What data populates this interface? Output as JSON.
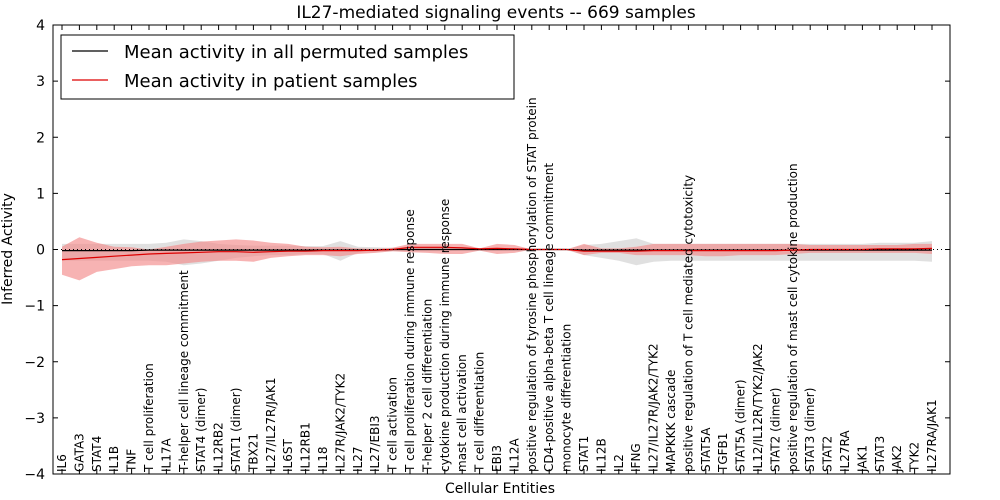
{
  "chart_data": {
    "type": "line",
    "title": "IL27-mediated signaling events -- 669 samples",
    "xlabel": "Cellular Entities",
    "ylabel": "Inferred Activity",
    "ylim": [
      -4,
      4
    ],
    "yticks": [
      -4,
      -3,
      -2,
      -1,
      0,
      1,
      2,
      3,
      4
    ],
    "categories": [
      "IL6",
      "GATA3",
      "STAT4",
      "IL1B",
      "TNF",
      "T cell proliferation",
      "IL17A",
      "T-helper cell lineage commitment",
      "STAT4 (dimer)",
      "IL12RB2",
      "STAT1 (dimer)",
      "TBX21",
      "IL27/IL27R/JAK1",
      "IL6ST",
      "IL12RB1",
      "IL18",
      "IL27R/JAK2/TYK2",
      "IL27",
      "IL27/EBI3",
      "T cell activation",
      "T cell proliferation during immune response",
      "T-helper 2 cell differentiation",
      "cytokine production during immune response",
      "mast cell activation",
      "T cell differentiation",
      "EBI3",
      "IL12A",
      "positive regulation of tyrosine phosphorylation of STAT protein",
      "CD4-positive alpha-beta T cell lineage commitment",
      "monocyte differentiation",
      "STAT1",
      "IL12B",
      "IL2",
      "IFNG",
      "IL27/IL27R/JAK2/TYK2",
      "MAPKKK cascade",
      "positive regulation of T cell mediated cytotoxicity",
      "STAT5A",
      "TGFB1",
      "STAT5A (dimer)",
      "IL12/IL12R/TYK2/JAK2",
      "STAT2 (dimer)",
      "positive regulation of mast cell cytokine production",
      "STAT3 (dimer)",
      "STAT2",
      "IL27RA",
      "JAK1",
      "STAT3",
      "JAK2",
      "TYK2",
      "IL27RA/JAK1"
    ],
    "series": [
      {
        "name": "Mean activity in all permuted samples",
        "color": "#000000",
        "fill": "#bbbbbb",
        "values": [
          -0.02,
          -0.02,
          -0.02,
          -0.02,
          -0.02,
          -0.01,
          -0.01,
          -0.01,
          -0.01,
          -0.01,
          -0.01,
          -0.01,
          -0.01,
          -0.01,
          -0.01,
          -0.01,
          -0.01,
          -0.01,
          -0.01,
          0.0,
          0.0,
          0.0,
          0.0,
          0.0,
          0.0,
          0.0,
          0.0,
          0.0,
          0.0,
          0.0,
          -0.01,
          -0.01,
          -0.01,
          -0.01,
          -0.01,
          -0.01,
          -0.01,
          -0.01,
          -0.01,
          -0.01,
          -0.01,
          -0.01,
          -0.01,
          -0.01,
          -0.01,
          -0.01,
          -0.01,
          -0.01,
          -0.01,
          -0.01,
          -0.01
        ],
        "upper": [
          0.1,
          0.1,
          0.1,
          0.1,
          0.1,
          0.1,
          0.12,
          0.18,
          0.15,
          0.1,
          0.08,
          0.07,
          0.07,
          0.07,
          0.06,
          0.06,
          0.15,
          0.05,
          0.04,
          0.03,
          0.03,
          0.03,
          0.03,
          0.02,
          0.02,
          0.02,
          0.02,
          0.01,
          0.01,
          0.01,
          0.08,
          0.1,
          0.15,
          0.2,
          0.1,
          0.1,
          0.1,
          0.1,
          0.1,
          0.1,
          0.1,
          0.1,
          0.1,
          0.1,
          0.1,
          0.1,
          0.1,
          0.12,
          0.12,
          0.12,
          0.15
        ],
        "lower": [
          -0.2,
          -0.2,
          -0.2,
          -0.2,
          -0.2,
          -0.2,
          -0.22,
          -0.28,
          -0.25,
          -0.2,
          -0.15,
          -0.12,
          -0.1,
          -0.1,
          -0.08,
          -0.08,
          -0.2,
          -0.06,
          -0.05,
          -0.03,
          -0.03,
          -0.03,
          -0.03,
          -0.02,
          -0.02,
          -0.02,
          -0.02,
          -0.01,
          -0.01,
          -0.01,
          -0.1,
          -0.15,
          -0.2,
          -0.28,
          -0.22,
          -0.2,
          -0.2,
          -0.2,
          -0.2,
          -0.2,
          -0.2,
          -0.2,
          -0.2,
          -0.2,
          -0.2,
          -0.2,
          -0.2,
          -0.2,
          -0.2,
          -0.2,
          -0.22
        ]
      },
      {
        "name": "Mean activity in patient samples",
        "color": "#dd0000",
        "fill": "#f28b8b",
        "values": [
          -0.18,
          -0.16,
          -0.14,
          -0.12,
          -0.1,
          -0.08,
          -0.07,
          -0.06,
          -0.05,
          -0.04,
          -0.04,
          -0.05,
          -0.04,
          -0.03,
          -0.03,
          -0.02,
          -0.02,
          -0.02,
          -0.01,
          0.0,
          0.04,
          0.04,
          0.04,
          0.03,
          0.01,
          0.02,
          0.01,
          0.0,
          0.0,
          0.0,
          -0.03,
          -0.03,
          -0.03,
          -0.03,
          -0.02,
          -0.02,
          -0.02,
          -0.02,
          -0.02,
          -0.02,
          -0.02,
          -0.02,
          -0.01,
          0.0,
          0.0,
          0.0,
          0.0,
          0.01,
          0.01,
          0.01,
          0.02
        ],
        "upper": [
          0.05,
          0.22,
          0.12,
          0.05,
          0.04,
          0.0,
          0.05,
          0.1,
          0.14,
          0.16,
          0.18,
          0.16,
          0.12,
          0.1,
          0.05,
          0.04,
          0.05,
          0.02,
          0.01,
          0.03,
          0.1,
          0.1,
          0.1,
          0.1,
          0.02,
          0.1,
          0.08,
          0.0,
          0.0,
          0.0,
          0.1,
          0.02,
          0.02,
          0.05,
          0.1,
          0.1,
          0.1,
          0.1,
          0.1,
          0.1,
          0.1,
          0.1,
          0.1,
          0.08,
          0.08,
          0.08,
          0.08,
          0.08,
          0.08,
          0.1,
          0.1
        ],
        "lower": [
          -0.45,
          -0.55,
          -0.4,
          -0.35,
          -0.3,
          -0.28,
          -0.28,
          -0.25,
          -0.22,
          -0.2,
          -0.2,
          -0.22,
          -0.15,
          -0.12,
          -0.1,
          -0.1,
          -0.12,
          -0.08,
          -0.06,
          -0.03,
          -0.05,
          -0.06,
          -0.08,
          -0.08,
          -0.02,
          -0.08,
          -0.06,
          0.0,
          0.0,
          0.0,
          -0.1,
          -0.06,
          -0.06,
          -0.1,
          -0.1,
          -0.1,
          -0.1,
          -0.12,
          -0.12,
          -0.1,
          -0.1,
          -0.1,
          -0.08,
          -0.06,
          -0.06,
          -0.06,
          -0.06,
          -0.06,
          -0.06,
          -0.06,
          -0.08
        ]
      }
    ],
    "legend": {
      "placement": "top-left"
    },
    "grid": false
  }
}
